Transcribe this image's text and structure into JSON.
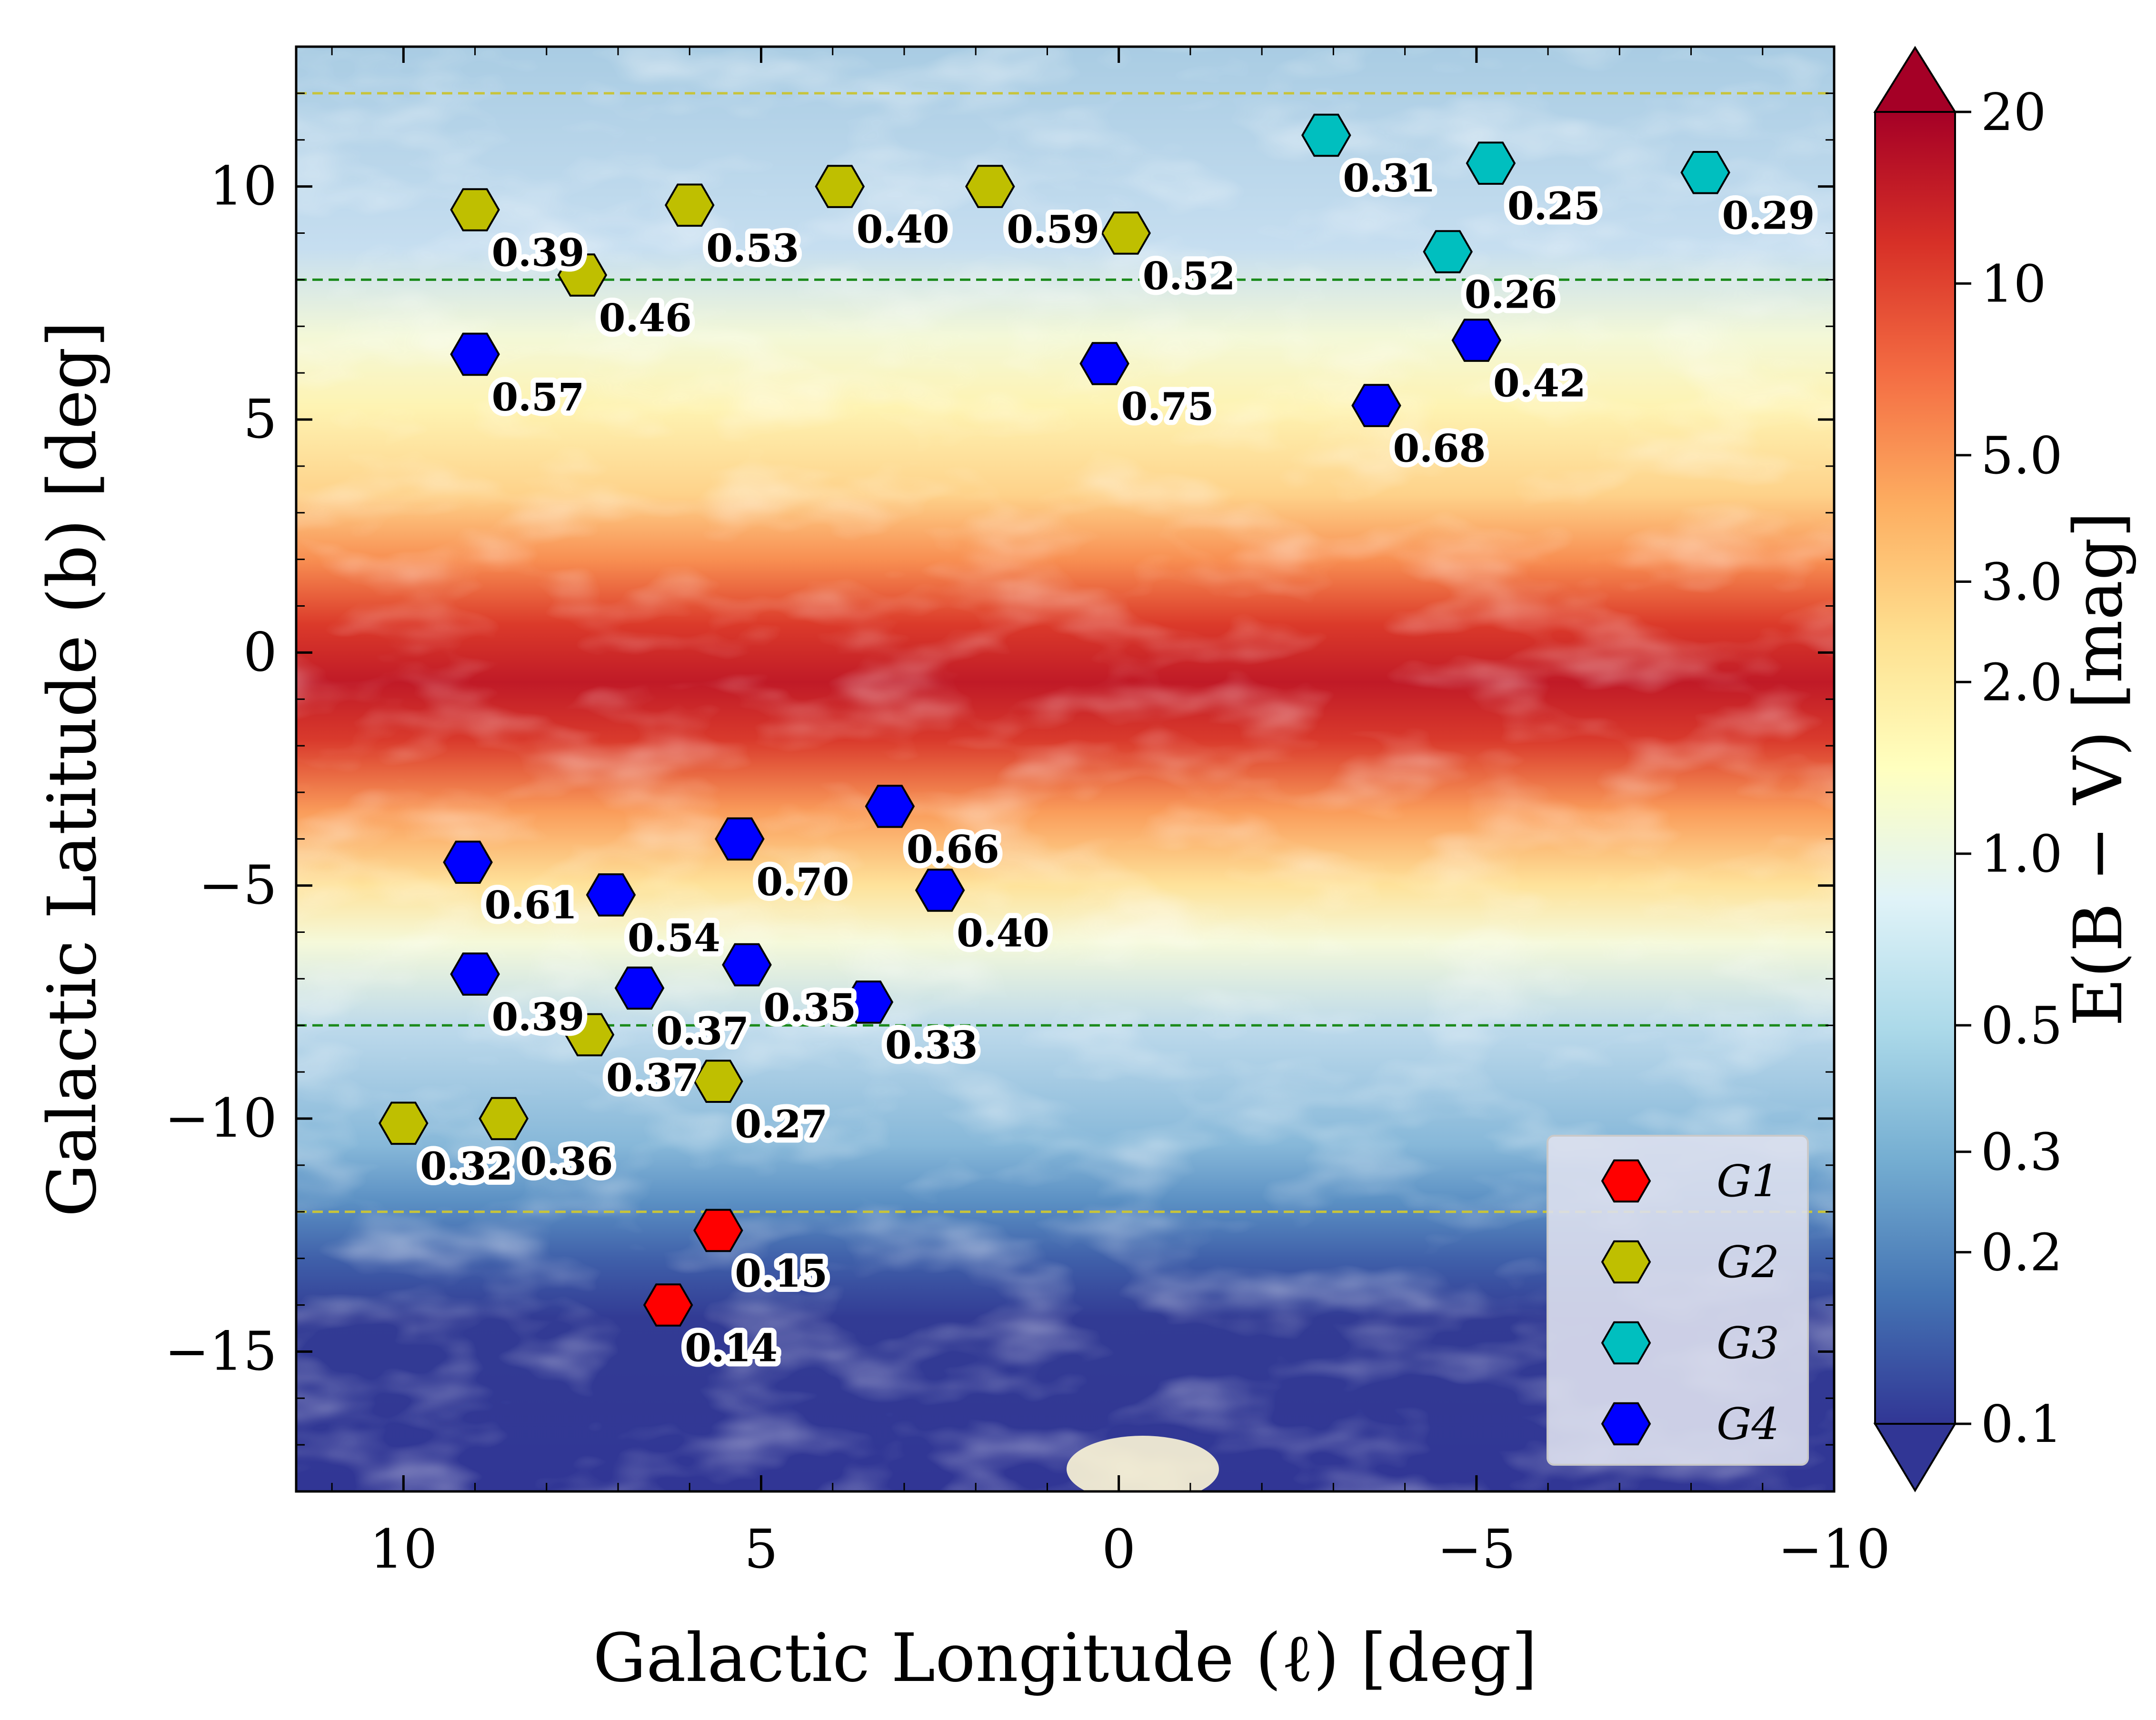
{
  "chart_data": {
    "type": "scatter",
    "xlabel": "Galactic Longitude (ℓ) [deg]",
    "ylabel": "Galactic Latitude (b) [deg]",
    "xlim": [
      11.5,
      -10
    ],
    "ylim": [
      -18,
      13
    ],
    "xticks": [
      10,
      5,
      0,
      -5,
      -10
    ],
    "yticks": [
      10,
      5,
      0,
      -5,
      -10,
      -15
    ],
    "xtick_labels": [
      "10",
      "5",
      "0",
      "−5",
      "−10"
    ],
    "ytick_labels": [
      "10",
      "5",
      "0",
      "−5",
      "−10",
      "−15"
    ],
    "reference_lines": [
      {
        "b": 12,
        "color": "#c8c43a",
        "style": "dashed"
      },
      {
        "b": 8,
        "color": "#1a8a1a",
        "style": "dashed"
      },
      {
        "b": -8,
        "color": "#1a8a1a",
        "style": "dashed"
      },
      {
        "b": -12,
        "color": "#c8c43a",
        "style": "dashed"
      }
    ],
    "background": "E(B−V) extinction map (log color scale, RdYlBu_r)",
    "colorbar": {
      "label": "E(B − V) [mag]",
      "scale": "log",
      "range": [
        0.1,
        20
      ],
      "ticks": [
        20,
        10,
        5.0,
        3.0,
        2.0,
        1.0,
        0.5,
        0.3,
        0.2,
        0.1
      ],
      "tick_labels": [
        "20",
        "10",
        "5.0",
        "3.0",
        "2.0",
        "1.0",
        "0.5",
        "0.3",
        "0.2",
        "0.1"
      ],
      "extend": "both"
    },
    "legend_position": "lower right",
    "series": [
      {
        "name": "G1",
        "color": "#ff0000",
        "marker": "hexagon",
        "points": [
          {
            "l": 5.6,
            "b": -12.4,
            "label": "0.15"
          },
          {
            "l": 6.3,
            "b": -14.0,
            "label": "0.14"
          }
        ]
      },
      {
        "name": "G2",
        "color": "#bfbf00",
        "marker": "hexagon",
        "points": [
          {
            "l": 9.0,
            "b": 9.5,
            "label": "0.39"
          },
          {
            "l": 7.5,
            "b": 8.1,
            "label": "0.46"
          },
          {
            "l": 6.0,
            "b": 9.6,
            "label": "0.53"
          },
          {
            "l": 3.9,
            "b": 10.0,
            "label": "0.40"
          },
          {
            "l": 1.8,
            "b": 10.0,
            "label": "0.59"
          },
          {
            "l": -0.1,
            "b": 9.0,
            "label": "0.52"
          },
          {
            "l": 7.4,
            "b": -8.2,
            "label": "0.37"
          },
          {
            "l": 5.6,
            "b": -9.2,
            "label": "0.27"
          },
          {
            "l": 10.0,
            "b": -10.1,
            "label": "0.32"
          },
          {
            "l": 8.6,
            "b": -10.0,
            "label": "0.36"
          }
        ]
      },
      {
        "name": "G3",
        "color": "#00bfbf",
        "marker": "hexagon",
        "points": [
          {
            "l": -2.9,
            "b": 11.1,
            "label": "0.31"
          },
          {
            "l": -5.2,
            "b": 10.5,
            "label": "0.25"
          },
          {
            "l": -4.6,
            "b": 8.6,
            "label": "0.26"
          },
          {
            "l": -8.2,
            "b": 10.3,
            "label": "0.29"
          }
        ]
      },
      {
        "name": "G4",
        "color": "#0000ff",
        "marker": "hexagon",
        "points": [
          {
            "l": 9.0,
            "b": 6.4,
            "label": "0.57"
          },
          {
            "l": 0.2,
            "b": 6.2,
            "label": "0.75"
          },
          {
            "l": -5.0,
            "b": 6.7,
            "label": "0.42"
          },
          {
            "l": -3.6,
            "b": 5.3,
            "label": "0.68"
          },
          {
            "l": 3.2,
            "b": -3.3,
            "label": "0.66"
          },
          {
            "l": 5.3,
            "b": -4.0,
            "label": "0.70"
          },
          {
            "l": 9.1,
            "b": -4.5,
            "label": "0.61"
          },
          {
            "l": 7.1,
            "b": -5.2,
            "label": "0.54"
          },
          {
            "l": 2.5,
            "b": -5.1,
            "label": "0.40"
          },
          {
            "l": 9.0,
            "b": -6.9,
            "label": "0.39"
          },
          {
            "l": 6.7,
            "b": -7.2,
            "label": "0.37"
          },
          {
            "l": 5.2,
            "b": -6.7,
            "label": "0.35"
          },
          {
            "l": 3.5,
            "b": -7.5,
            "label": "0.33"
          }
        ]
      }
    ]
  }
}
